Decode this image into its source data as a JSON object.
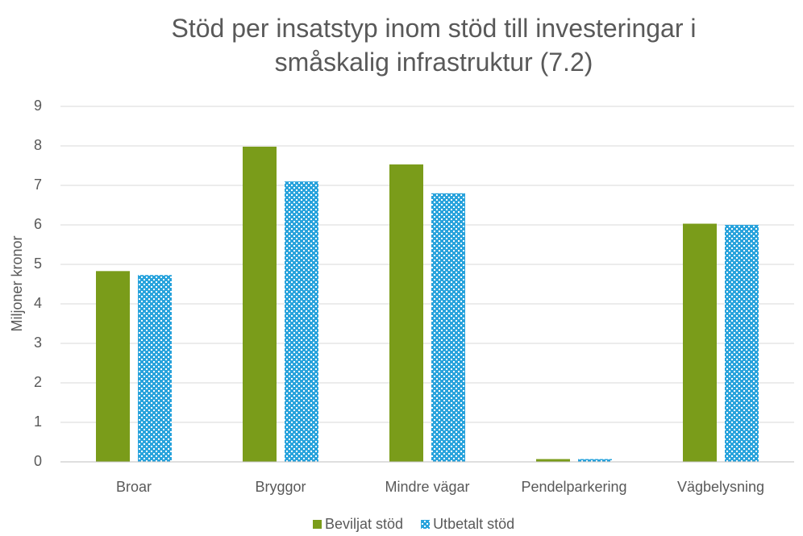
{
  "chart_data": {
    "type": "bar",
    "title": "Stöd per insatstyp inom stöd till investeringar i småskalig infrastruktur (7.2)",
    "y_label": "Miljoner kronor",
    "categories": [
      "Broar",
      "Bryggor",
      "Mindre vägar",
      "Pendelparkering",
      "Vägbelysning"
    ],
    "series": [
      {
        "name": "Beviljat stöd",
        "color": "#7a9c1a",
        "values": [
          4.83,
          7.98,
          7.53,
          0.07,
          6.03
        ]
      },
      {
        "name": "Utbetalt stöd",
        "color": "#29a3dc",
        "pattern": "checkered",
        "values": [
          4.73,
          7.1,
          6.8,
          0.07,
          6.0
        ]
      }
    ],
    "ylim": [
      0,
      9
    ],
    "yticks": [
      0,
      1,
      2,
      3,
      4,
      5,
      6,
      7,
      8,
      9
    ],
    "grid": true,
    "legend": "bottom"
  }
}
